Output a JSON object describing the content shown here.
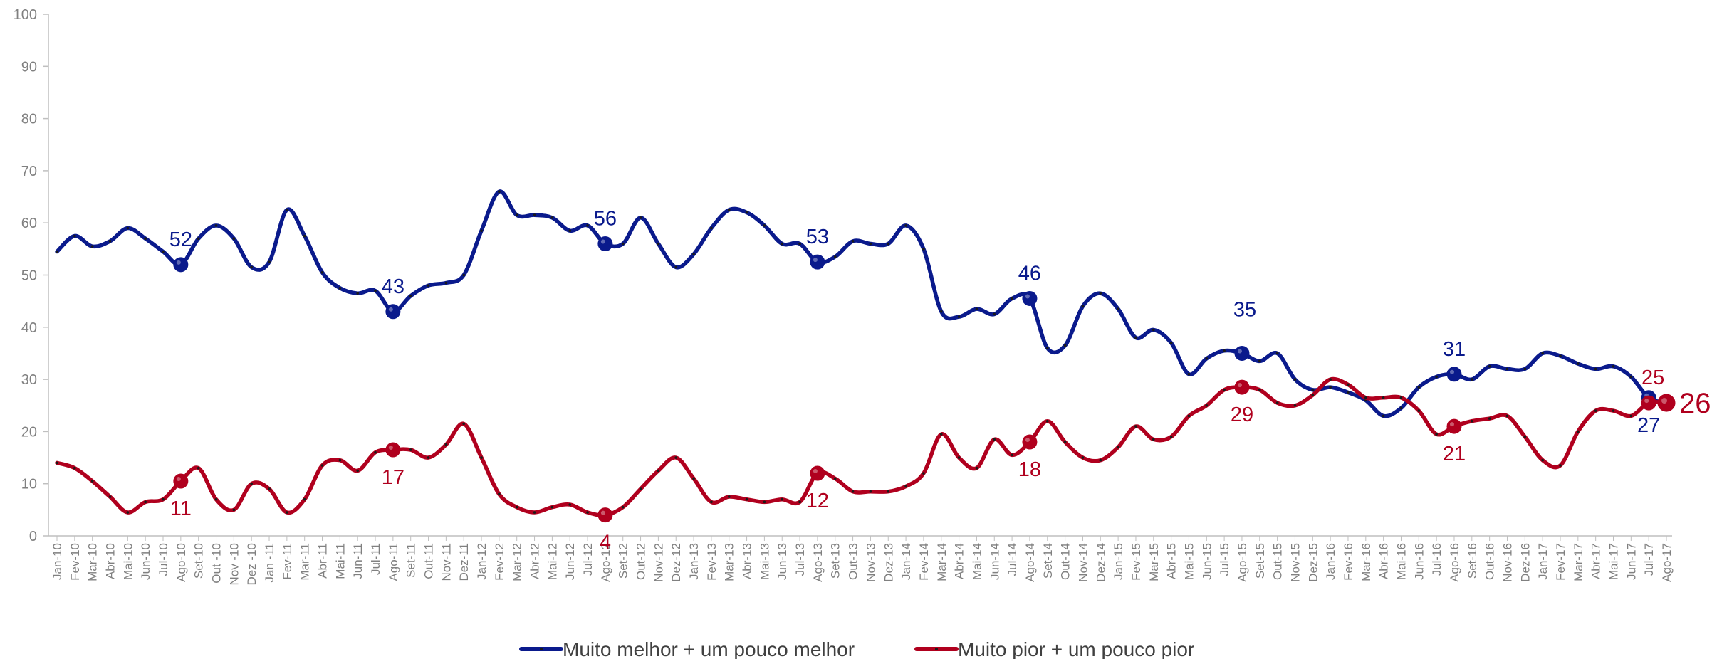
{
  "chart_data": {
    "type": "line",
    "title": "",
    "xlabel": "",
    "ylabel": "",
    "ylim": [
      0,
      100
    ],
    "yticks": [
      0,
      10,
      20,
      30,
      40,
      50,
      60,
      70,
      80,
      90,
      100
    ],
    "grid": false,
    "legend": "bottom",
    "x": [
      "Jan-10",
      "Fev-10",
      "Mar-10",
      "Abr-10",
      "Mai-10",
      "Jun-10",
      "Jul-10",
      "Ago-10",
      "Set-10",
      "Out -10",
      "Nov -10",
      "Dez -10",
      "Jan -11",
      "Fev-11",
      "Mar-11",
      "Abr-11",
      "Mai-11",
      "Jun-11",
      "Jul-11",
      "Ago-11",
      "Set-11",
      "Out-11",
      "Nov-11",
      "Dez-11",
      "Jan-12",
      "Fev-12",
      "Mar-12",
      "Abr-12",
      "Mai-12",
      "Jun-12",
      "Jul-12",
      "Ago-12",
      "Set-12",
      "Out-12",
      "Nov-12",
      "Dez-12",
      "Jan-13",
      "Fev-13",
      "Mar-13",
      "Abr-13",
      "Mai-13",
      "Jun-13",
      "Jul-13",
      "Ago-13",
      "Set-13",
      "Out-13",
      "Nov-13",
      "Dez-13",
      "Jan-14",
      "Fev-14",
      "Mar-14",
      "Abr-14",
      "Mai-14",
      "Jun-14",
      "Jul-14",
      "Ago-14",
      "Set-14",
      "Out-14",
      "Nov-14",
      "Dez-14",
      "Jan-15",
      "Fev-15",
      "Mar-15",
      "Abr-15",
      "Mai-15",
      "Jun-15",
      "Jul-15",
      "Ago-15",
      "Set-15",
      "Out-15",
      "Nov-15",
      "Dez-15",
      "Jan-16",
      "Fev-16",
      "Mar-16",
      "Abr-16",
      "Mai-16",
      "Jun-16",
      "Jul-16",
      "Ago-16",
      "Set-16",
      "Out-16",
      "Nov-16",
      "Dez-16",
      "Jan-17",
      "Fev-17",
      "Mar-17",
      "Abr-17",
      "Mai-17",
      "Jun-17",
      "Jul-17",
      "Ago-17"
    ],
    "series": [
      {
        "name": "Muito melhor + um pouco melhor",
        "color": "#0a1a8c",
        "values": [
          54.5,
          57.5,
          55.5,
          56.5,
          59,
          57,
          54.5,
          52,
          57,
          59.5,
          57,
          51.5,
          52.5,
          62.5,
          57.5,
          50.5,
          47.5,
          46.5,
          47,
          43,
          46,
          48,
          48.5,
          50,
          58.5,
          66,
          61.5,
          61.5,
          61,
          58.5,
          59.5,
          56,
          56,
          61,
          56,
          51.5,
          54,
          59,
          62.5,
          62,
          59.5,
          56,
          56,
          52.5,
          53.5,
          56.5,
          56,
          56,
          59.5,
          55,
          43,
          42,
          43.5,
          42.5,
          45.5,
          45.5,
          36,
          36.5,
          44,
          46.5,
          43.5,
          38,
          39.5,
          37,
          31,
          34,
          35.5,
          35,
          33.5,
          35,
          30,
          28,
          28.5,
          27.5,
          26,
          23,
          24.5,
          28.5,
          30.5,
          31,
          30,
          32.5,
          32,
          32,
          35,
          34.5,
          33,
          32,
          32.5,
          30.5,
          26.5,
          25.5
        ],
        "annotations": [
          {
            "x": "Ago-10",
            "label": "52"
          },
          {
            "x": "Ago-11",
            "label": "43"
          },
          {
            "x": "Ago-12",
            "label": "56"
          },
          {
            "x": "Ago-13",
            "label": "53"
          },
          {
            "x": "Ago-14",
            "label": "46"
          },
          {
            "x": "Ago-15",
            "label": "35"
          },
          {
            "x": "Ago-16",
            "label": "31"
          },
          {
            "x": "Jul-17",
            "label": "27"
          }
        ]
      },
      {
        "name": "Muito pior + um pouco pior",
        "color": "#b0001e",
        "values": [
          14,
          13,
          10.5,
          7.5,
          4.5,
          6.5,
          7,
          10.5,
          13,
          7,
          5,
          10,
          9,
          4.5,
          7,
          13.5,
          14.5,
          12.5,
          16,
          16.5,
          16.5,
          15,
          17.5,
          21.5,
          15,
          8,
          5.5,
          4.5,
          5.5,
          6,
          4.5,
          4,
          5.5,
          9,
          12.5,
          15,
          11,
          6.5,
          7.5,
          7,
          6.5,
          7,
          6.5,
          12,
          11,
          8.5,
          8.5,
          8.5,
          9.5,
          12,
          19.5,
          15,
          13,
          18.5,
          15.5,
          18,
          22,
          18,
          15,
          14.5,
          17,
          21,
          18.5,
          19,
          23,
          25,
          28,
          28.5,
          28,
          25.5,
          25,
          27,
          30,
          29,
          26.5,
          26.5,
          26.5,
          24,
          19.5,
          21,
          22,
          22.5,
          23,
          19,
          14.5,
          13.5,
          20,
          24,
          24,
          23,
          25.5,
          25.5
        ],
        "annotations": [
          {
            "x": "Ago-10",
            "label": "11"
          },
          {
            "x": "Ago-11",
            "label": "17"
          },
          {
            "x": "Ago-12",
            "label": "4"
          },
          {
            "x": "Ago-13",
            "label": "12"
          },
          {
            "x": "Ago-14",
            "label": "18"
          },
          {
            "x": "Ago-15",
            "label": "29"
          },
          {
            "x": "Ago-16",
            "label": "21"
          },
          {
            "x": "Jul-17",
            "label": "25"
          },
          {
            "x": "Ago-17",
            "label": "26"
          }
        ]
      }
    ]
  }
}
